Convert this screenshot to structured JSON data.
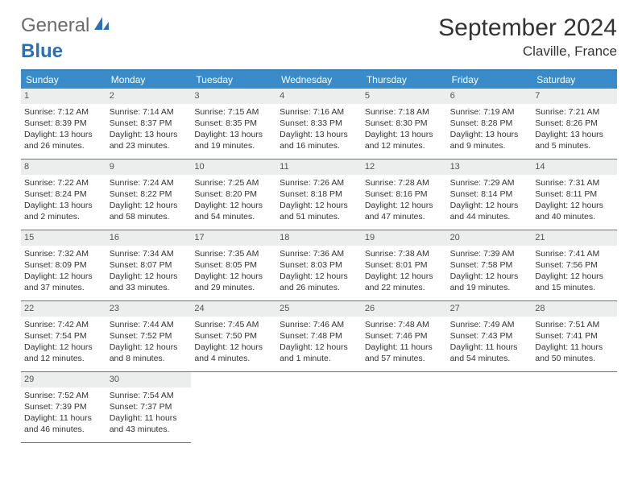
{
  "logo": {
    "text1": "General",
    "text2": "Blue"
  },
  "title": "September 2024",
  "location": "Claville, France",
  "colors": {
    "header_bg": "#3a8bc9",
    "header_text": "#ffffff",
    "border": "#3a7fb8",
    "daynum_bg": "#eceded",
    "logo_gray": "#6b6b6b",
    "logo_blue": "#2f6fb0"
  },
  "weekdays": [
    "Sunday",
    "Monday",
    "Tuesday",
    "Wednesday",
    "Thursday",
    "Friday",
    "Saturday"
  ],
  "days": [
    {
      "n": "1",
      "sr": "7:12 AM",
      "ss": "8:39 PM",
      "dl": "13 hours and 26 minutes."
    },
    {
      "n": "2",
      "sr": "7:14 AM",
      "ss": "8:37 PM",
      "dl": "13 hours and 23 minutes."
    },
    {
      "n": "3",
      "sr": "7:15 AM",
      "ss": "8:35 PM",
      "dl": "13 hours and 19 minutes."
    },
    {
      "n": "4",
      "sr": "7:16 AM",
      "ss": "8:33 PM",
      "dl": "13 hours and 16 minutes."
    },
    {
      "n": "5",
      "sr": "7:18 AM",
      "ss": "8:30 PM",
      "dl": "13 hours and 12 minutes."
    },
    {
      "n": "6",
      "sr": "7:19 AM",
      "ss": "8:28 PM",
      "dl": "13 hours and 9 minutes."
    },
    {
      "n": "7",
      "sr": "7:21 AM",
      "ss": "8:26 PM",
      "dl": "13 hours and 5 minutes."
    },
    {
      "n": "8",
      "sr": "7:22 AM",
      "ss": "8:24 PM",
      "dl": "13 hours and 2 minutes."
    },
    {
      "n": "9",
      "sr": "7:24 AM",
      "ss": "8:22 PM",
      "dl": "12 hours and 58 minutes."
    },
    {
      "n": "10",
      "sr": "7:25 AM",
      "ss": "8:20 PM",
      "dl": "12 hours and 54 minutes."
    },
    {
      "n": "11",
      "sr": "7:26 AM",
      "ss": "8:18 PM",
      "dl": "12 hours and 51 minutes."
    },
    {
      "n": "12",
      "sr": "7:28 AM",
      "ss": "8:16 PM",
      "dl": "12 hours and 47 minutes."
    },
    {
      "n": "13",
      "sr": "7:29 AM",
      "ss": "8:14 PM",
      "dl": "12 hours and 44 minutes."
    },
    {
      "n": "14",
      "sr": "7:31 AM",
      "ss": "8:11 PM",
      "dl": "12 hours and 40 minutes."
    },
    {
      "n": "15",
      "sr": "7:32 AM",
      "ss": "8:09 PM",
      "dl": "12 hours and 37 minutes."
    },
    {
      "n": "16",
      "sr": "7:34 AM",
      "ss": "8:07 PM",
      "dl": "12 hours and 33 minutes."
    },
    {
      "n": "17",
      "sr": "7:35 AM",
      "ss": "8:05 PM",
      "dl": "12 hours and 29 minutes."
    },
    {
      "n": "18",
      "sr": "7:36 AM",
      "ss": "8:03 PM",
      "dl": "12 hours and 26 minutes."
    },
    {
      "n": "19",
      "sr": "7:38 AM",
      "ss": "8:01 PM",
      "dl": "12 hours and 22 minutes."
    },
    {
      "n": "20",
      "sr": "7:39 AM",
      "ss": "7:58 PM",
      "dl": "12 hours and 19 minutes."
    },
    {
      "n": "21",
      "sr": "7:41 AM",
      "ss": "7:56 PM",
      "dl": "12 hours and 15 minutes."
    },
    {
      "n": "22",
      "sr": "7:42 AM",
      "ss": "7:54 PM",
      "dl": "12 hours and 12 minutes."
    },
    {
      "n": "23",
      "sr": "7:44 AM",
      "ss": "7:52 PM",
      "dl": "12 hours and 8 minutes."
    },
    {
      "n": "24",
      "sr": "7:45 AM",
      "ss": "7:50 PM",
      "dl": "12 hours and 4 minutes."
    },
    {
      "n": "25",
      "sr": "7:46 AM",
      "ss": "7:48 PM",
      "dl": "12 hours and 1 minute."
    },
    {
      "n": "26",
      "sr": "7:48 AM",
      "ss": "7:46 PM",
      "dl": "11 hours and 57 minutes."
    },
    {
      "n": "27",
      "sr": "7:49 AM",
      "ss": "7:43 PM",
      "dl": "11 hours and 54 minutes."
    },
    {
      "n": "28",
      "sr": "7:51 AM",
      "ss": "7:41 PM",
      "dl": "11 hours and 50 minutes."
    },
    {
      "n": "29",
      "sr": "7:52 AM",
      "ss": "7:39 PM",
      "dl": "11 hours and 46 minutes."
    },
    {
      "n": "30",
      "sr": "7:54 AM",
      "ss": "7:37 PM",
      "dl": "11 hours and 43 minutes."
    }
  ],
  "labels": {
    "sunrise": "Sunrise:",
    "sunset": "Sunset:",
    "daylight": "Daylight:"
  }
}
